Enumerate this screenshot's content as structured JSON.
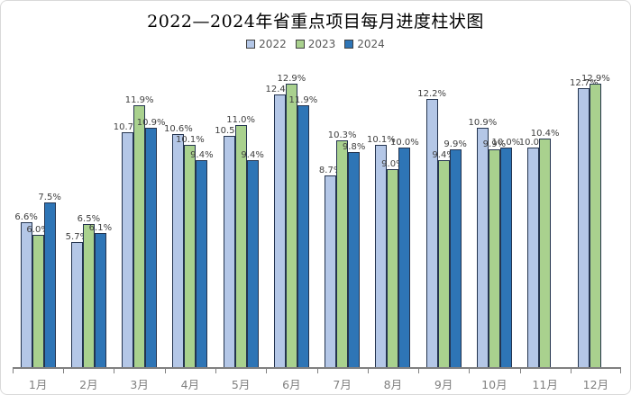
{
  "window": {
    "background": "#ffffff",
    "border_color": "#d9d9d9"
  },
  "chart_data": {
    "type": "bar",
    "title": "2022—2024年省重点项目每月进度柱状图",
    "categories": [
      "1月",
      "2月",
      "3月",
      "4月",
      "5月",
      "6月",
      "7月",
      "8月",
      "9月",
      "10月",
      "11月",
      "12月"
    ],
    "series": [
      {
        "name": "2022",
        "color": "#b4c7e7",
        "values": [
          6.6,
          5.7,
          10.7,
          10.6,
          10.5,
          12.4,
          8.7,
          10.1,
          12.2,
          10.9,
          10.0,
          12.7
        ]
      },
      {
        "name": "2023",
        "color": "#a9d18e",
        "values": [
          6.0,
          6.5,
          11.9,
          10.1,
          11.0,
          12.9,
          10.3,
          9.0,
          9.4,
          9.9,
          10.4,
          12.9
        ]
      },
      {
        "name": "2024",
        "color": "#2e75b6",
        "values": [
          7.5,
          6.1,
          10.9,
          9.4,
          9.4,
          11.9,
          9.8,
          10.0,
          9.9,
          10.0,
          null,
          null
        ]
      }
    ],
    "value_suffix": "%",
    "value_decimals": 1,
    "ylim": [
      0,
      14
    ],
    "grid": false,
    "legend_position": "top-center",
    "xlabel": "",
    "ylabel": "",
    "colors": {
      "bar_outline": "#24344f",
      "axis": "#808080",
      "data_label": "#3f3f3f",
      "category_label": "#7f7f7f",
      "title": "#000000",
      "legend_text": "#595959"
    }
  }
}
